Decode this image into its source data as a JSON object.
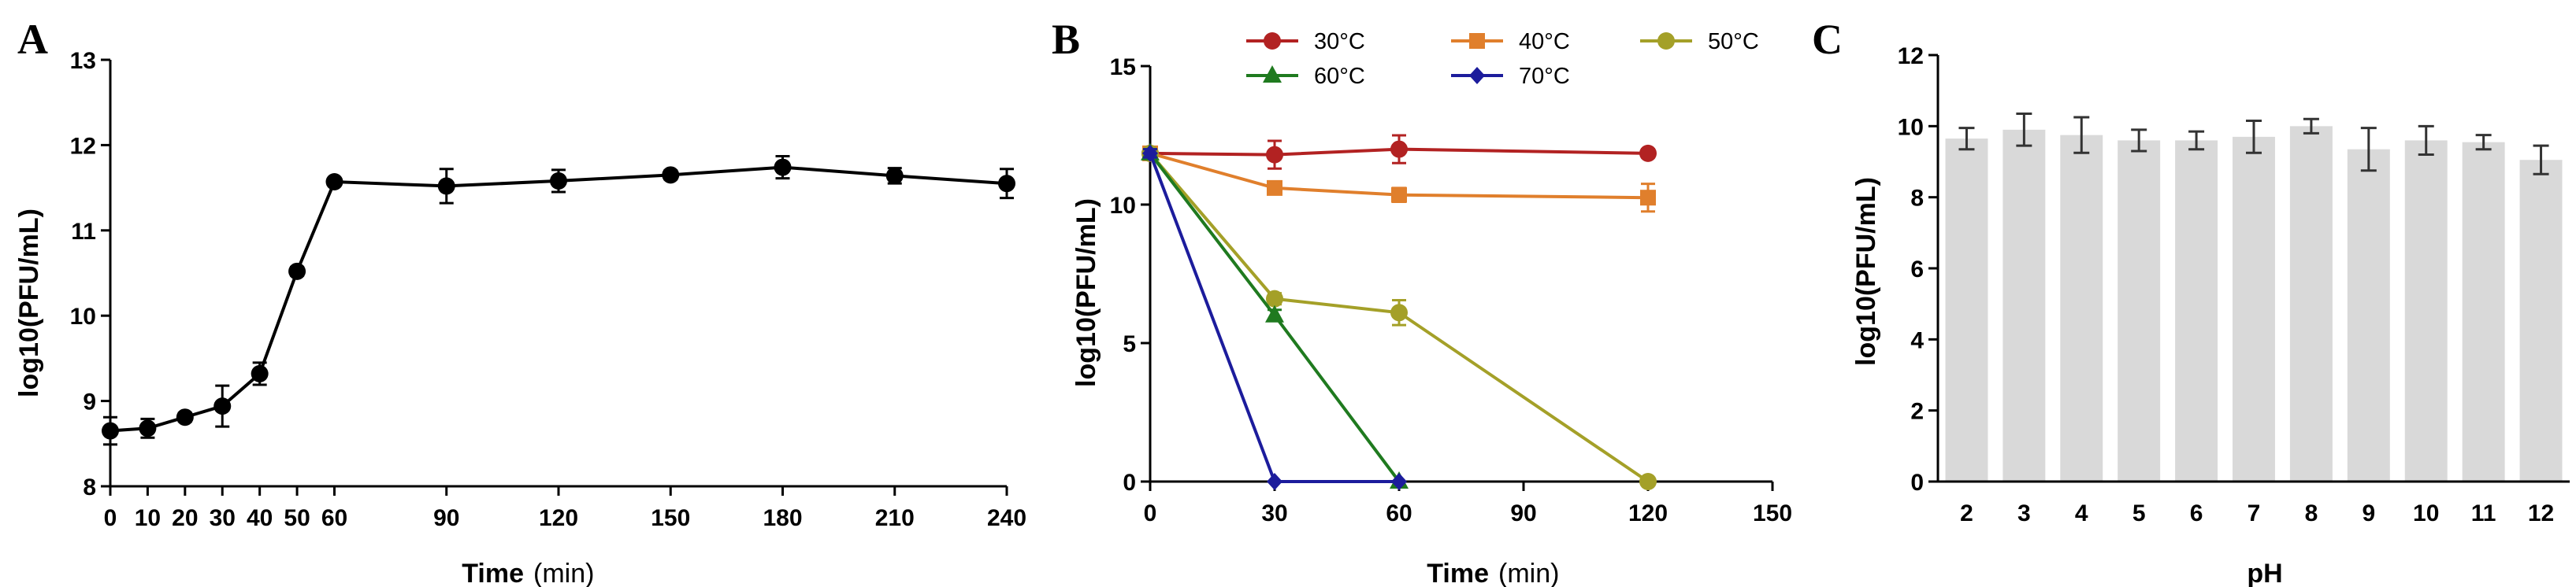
{
  "chart_data": [
    {
      "panel": "A",
      "type": "line",
      "xlabel": "Time",
      "xlabel_unit": "(min)",
      "ylabel": "log10(PFU/mL)",
      "xlim": [
        0,
        240
      ],
      "ylim": [
        8,
        13
      ],
      "xticks": [
        0,
        10,
        20,
        30,
        40,
        50,
        60,
        90,
        120,
        150,
        180,
        210,
        240
      ],
      "xtick_labels": [
        "0",
        "10",
        "20",
        "30",
        "40",
        "50",
        "60",
        "90",
        "120",
        "150",
        "180",
        "210",
        "240"
      ],
      "yticks": [
        8,
        9,
        10,
        11,
        12,
        13
      ],
      "ytick_labels": [
        "8",
        "9",
        "10",
        "11",
        "12",
        "13"
      ],
      "color": "#000000",
      "series": [
        {
          "x": [
            0,
            10,
            20,
            30,
            40,
            50,
            60,
            90,
            120,
            150,
            180,
            210,
            240
          ],
          "y": [
            8.65,
            8.68,
            8.81,
            8.94,
            9.32,
            10.52,
            11.57,
            11.52,
            11.58,
            11.65,
            11.74,
            11.64,
            11.55
          ],
          "err": [
            0.16,
            0.11,
            0.05,
            0.24,
            0.13,
            0.05,
            0.03,
            0.2,
            0.13,
            0.05,
            0.13,
            0.09,
            0.17
          ]
        }
      ]
    },
    {
      "panel": "B",
      "type": "line",
      "xlabel": "Time",
      "xlabel_unit": "(min)",
      "ylabel": "log10(PFU/mL)",
      "xlim": [
        0,
        150
      ],
      "ylim": [
        0,
        15
      ],
      "xticks": [
        0,
        30,
        60,
        90,
        120,
        150
      ],
      "xtick_labels": [
        "0",
        "30",
        "60",
        "90",
        "120",
        "150"
      ],
      "yticks": [
        0,
        5,
        10,
        15
      ],
      "ytick_labels": [
        "0",
        "5",
        "10",
        "15"
      ],
      "legend": "top",
      "series": [
        {
          "name": "30°C",
          "color": "#b22222",
          "marker": "circle",
          "x": [
            0,
            30,
            60,
            120
          ],
          "y": [
            11.85,
            11.8,
            12.0,
            11.85
          ],
          "err": [
            0.15,
            0.5,
            0.5,
            0.15
          ]
        },
        {
          "name": "40°C",
          "color": "#e07f2c",
          "marker": "square",
          "x": [
            0,
            30,
            60,
            120
          ],
          "y": [
            11.85,
            10.6,
            10.35,
            10.25
          ],
          "err": [
            0.15,
            0.2,
            0.25,
            0.5
          ]
        },
        {
          "name": "50°C",
          "color": "#a4a028",
          "marker": "circle",
          "x": [
            0,
            30,
            60,
            120
          ],
          "y": [
            11.85,
            6.6,
            6.1,
            0
          ],
          "err": [
            0.15,
            0.2,
            0.45,
            0.05
          ]
        },
        {
          "name": "60°C",
          "color": "#1f7a1f",
          "marker": "triangle",
          "x": [
            0,
            30,
            60
          ],
          "y": [
            11.85,
            6.0,
            0
          ],
          "err": [
            0.15,
            0.2,
            0.05
          ]
        },
        {
          "name": "70°C",
          "color": "#1c1c9c",
          "marker": "diamond",
          "x": [
            0,
            30,
            60
          ],
          "y": [
            11.85,
            0,
            0
          ],
          "err": [
            0.15,
            0.05,
            0.05
          ]
        }
      ]
    },
    {
      "panel": "C",
      "type": "bar",
      "xlabel": "pH",
      "ylabel": "log10(PFU/mL)",
      "ylim": [
        0,
        12
      ],
      "yticks": [
        0,
        2,
        4,
        6,
        8,
        10,
        12
      ],
      "ytick_labels": [
        "0",
        "2",
        "4",
        "6",
        "8",
        "10",
        "12"
      ],
      "categories": [
        "2",
        "3",
        "4",
        "5",
        "6",
        "7",
        "8",
        "9",
        "10",
        "11",
        "12"
      ],
      "values": [
        9.65,
        9.9,
        9.75,
        9.6,
        9.6,
        9.7,
        10.0,
        9.35,
        9.6,
        9.55,
        9.05
      ],
      "err": [
        0.3,
        0.45,
        0.5,
        0.3,
        0.25,
        0.45,
        0.2,
        0.6,
        0.4,
        0.2,
        0.4
      ],
      "color": "#d9d9d9"
    }
  ]
}
